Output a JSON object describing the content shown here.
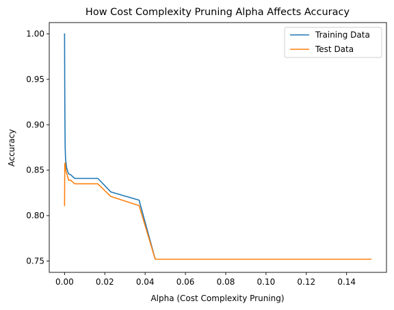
{
  "chart_data": {
    "type": "line",
    "title": "How Cost Complexity Pruning Alpha Affects Accuracy",
    "xlabel": "Alpha (Cost Complexity Pruning)",
    "ylabel": "Accuracy",
    "xlim": [
      -0.0076,
      0.1598
    ],
    "ylim": [
      0.7375,
      1.0125
    ],
    "xticks": [
      0.0,
      0.02,
      0.04,
      0.06,
      0.08,
      0.1,
      0.12,
      0.14
    ],
    "xtick_labels": [
      "0.00",
      "0.02",
      "0.04",
      "0.06",
      "0.08",
      "0.10",
      "0.12",
      "0.14"
    ],
    "yticks": [
      0.75,
      0.8,
      0.85,
      0.9,
      0.95,
      1.0
    ],
    "ytick_labels": [
      "0.75",
      "0.80",
      "0.85",
      "0.90",
      "0.95",
      "1.00"
    ],
    "grid": false,
    "legend_position": "top-right",
    "series": [
      {
        "name": "Training Data",
        "color": "#1f77b4",
        "x": [
          0.0,
          0.0001,
          0.0002,
          0.0003,
          0.0005,
          0.0008,
          0.001,
          0.0015,
          0.002,
          0.003,
          0.005,
          0.012,
          0.0165,
          0.023,
          0.037,
          0.045,
          0.152
        ],
        "y": [
          1.0,
          0.935,
          0.9,
          0.875,
          0.862,
          0.857,
          0.853,
          0.849,
          0.846,
          0.845,
          0.841,
          0.841,
          0.841,
          0.826,
          0.817,
          0.752,
          0.752
        ]
      },
      {
        "name": "Test Data",
        "color": "#ff7f0e",
        "x": [
          0.0,
          0.0001,
          0.0003,
          0.0005,
          0.0008,
          0.001,
          0.0015,
          0.002,
          0.003,
          0.005,
          0.012,
          0.0165,
          0.023,
          0.037,
          0.045,
          0.152
        ],
        "y": [
          0.811,
          0.857,
          0.858,
          0.853,
          0.848,
          0.847,
          0.843,
          0.839,
          0.839,
          0.835,
          0.835,
          0.835,
          0.821,
          0.811,
          0.752,
          0.752
        ]
      }
    ]
  }
}
